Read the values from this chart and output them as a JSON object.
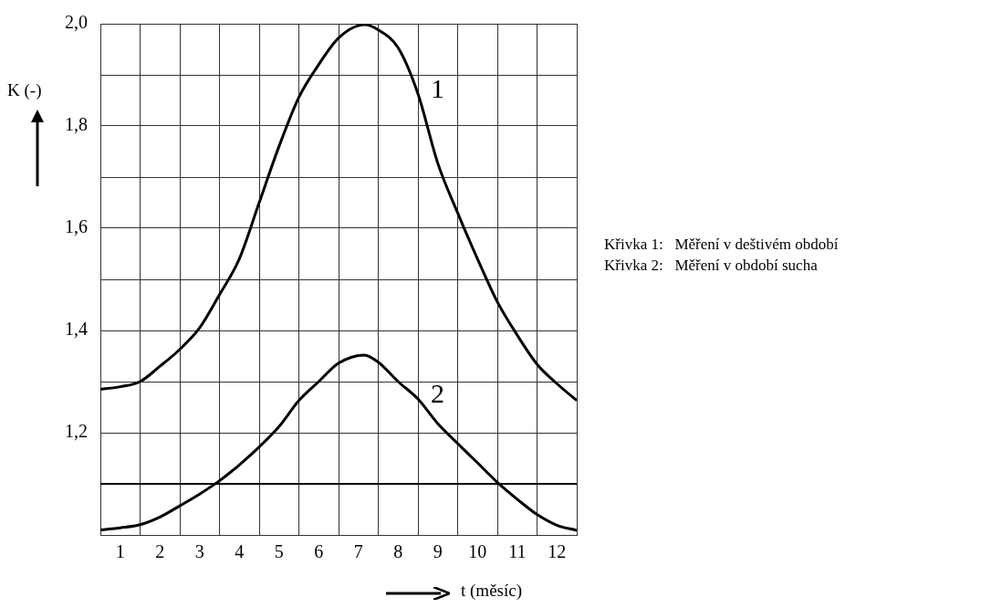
{
  "chart_data": {
    "type": "line",
    "xlabel": "t (měsíc)",
    "ylabel": "K (-)",
    "xlim": [
      0.5,
      12.5
    ],
    "xticks": [
      1,
      {
        "value": 1.5,
        "label": null
      },
      2,
      {
        "value": 2.5,
        "label": null
      },
      3,
      {
        "value": 3.5,
        "label": null
      },
      4,
      {
        "value": 4.5,
        "label": null
      },
      5,
      {
        "value": 5.5,
        "label": null
      },
      6,
      {
        "value": 6.5,
        "label": null
      },
      7,
      {
        "value": 7.5,
        "label": null
      },
      8,
      {
        "value": 8.5,
        "label": null
      },
      9,
      {
        "value": 9.5,
        "label": null
      },
      10,
      {
        "value": 10.5,
        "label": null
      },
      11,
      {
        "value": 11.5,
        "label": null
      },
      12,
      {
        "value": 12.5,
        "label": null
      }
    ],
    "ylim": [
      1.0,
      2.0
    ],
    "yticks": [
      {
        "value": 1.0,
        "label": null
      },
      {
        "value": 1.1,
        "label": null
      },
      {
        "value": 1.2,
        "label": "1,2"
      },
      {
        "value": 1.3,
        "label": null
      },
      {
        "value": 1.4,
        "label": "1,4"
      },
      {
        "value": 1.5,
        "label": null
      },
      {
        "value": 1.6,
        "label": "1,6"
      },
      {
        "value": 1.7,
        "label": null
      },
      {
        "value": 1.8,
        "label": "1,8"
      },
      {
        "value": 1.9,
        "label": null
      },
      {
        "value": 2.0,
        "label": "2,0"
      }
    ],
    "grid": true,
    "legend": false,
    "marker": "none",
    "line_style": "solid",
    "ref_lines": [
      {
        "axis": "y",
        "value": 1.1,
        "color": "#000000"
      }
    ],
    "series": [
      {
        "color": "#000000",
        "x": [
          0.5,
          1,
          1.5,
          2,
          2.5,
          3,
          3.5,
          4,
          4.5,
          5,
          5.5,
          6,
          6.5,
          7.15,
          7.5,
          8,
          8.5,
          9,
          9.5,
          10,
          10.5,
          11,
          11.5,
          12,
          12.5
        ],
        "values": [
          1.285,
          1.29,
          1.3,
          1.33,
          1.363,
          1.405,
          1.47,
          1.54,
          1.65,
          1.76,
          1.856,
          1.92,
          1.972,
          1.998,
          1.988,
          1.953,
          1.863,
          1.727,
          1.63,
          1.54,
          1.456,
          1.391,
          1.334,
          1.296,
          1.263
        ]
      },
      {
        "color": "#000000",
        "x": [
          0.5,
          1,
          1.5,
          2,
          2.5,
          3,
          3.5,
          4,
          4.5,
          5,
          5.5,
          6,
          6.5,
          7.15,
          7.5,
          8,
          8.5,
          9,
          9.5,
          10,
          10.5,
          11,
          11.5,
          12,
          12.5
        ],
        "values": [
          1.01,
          1.014,
          1.02,
          1.035,
          1.057,
          1.08,
          1.106,
          1.137,
          1.172,
          1.212,
          1.263,
          1.3,
          1.336,
          1.352,
          1.338,
          1.3,
          1.266,
          1.218,
          1.179,
          1.141,
          1.103,
          1.07,
          1.04,
          1.019,
          1.009
        ]
      }
    ],
    "annotations": [
      {
        "text": "1",
        "x": 8.5,
        "y": 1.863
      },
      {
        "text": "2",
        "x": 8.5,
        "y": 1.266
      },
      "Křivka 1:   Měření v deštivém období",
      "Křivka 2:   Měření v období sucha"
    ]
  }
}
